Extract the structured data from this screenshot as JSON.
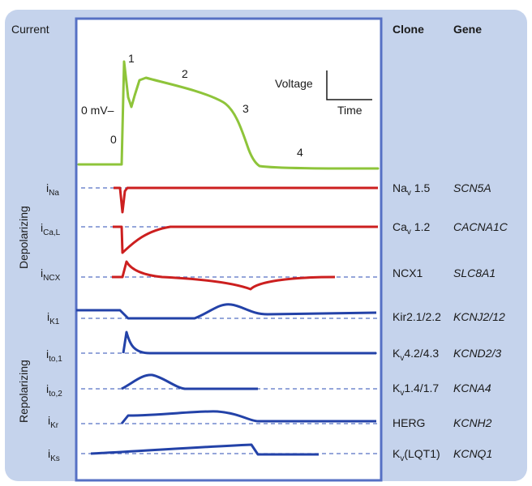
{
  "headers": {
    "current": "Current",
    "clone": "Clone",
    "gene": "Gene"
  },
  "colors": {
    "panel_bg": "#c5d3ec",
    "box_bg": "#ffffff",
    "box_border": "#5670c4",
    "ap_trace": "#8ec43a",
    "depolarizing_trace": "#cc1f1f",
    "repolarizing_trace": "#2342a8",
    "baseline_dash": "#5670c4"
  },
  "action_potential": {
    "phases": [
      "0",
      "1",
      "2",
      "3",
      "4"
    ],
    "zero_label": "0 mV–",
    "scale_voltage": "Voltage",
    "scale_time": "Time"
  },
  "groups": {
    "depolarizing": "Depolarizing",
    "repolarizing": "Repolarizing"
  },
  "currents": [
    {
      "id": "ina",
      "main": "i",
      "sub": "Na",
      "clone_main": "Na",
      "clone_sub": "v",
      "clone_rest": " 1.5",
      "gene": "SCN5A",
      "color": "red"
    },
    {
      "id": "ical",
      "main": "i",
      "sub": "Ca,L",
      "clone_main": "Ca",
      "clone_sub": "v",
      "clone_rest": " 1.2",
      "gene": "CACNA1C",
      "color": "red"
    },
    {
      "id": "incx",
      "main": "i",
      "sub": "NCX",
      "clone_main": "NCX1",
      "clone_sub": "",
      "clone_rest": "",
      "gene": "SLC8A1",
      "color": "red"
    },
    {
      "id": "ik1",
      "main": "i",
      "sub": "K1",
      "clone_main": "Kir2.1/2.2",
      "clone_sub": "",
      "clone_rest": "",
      "gene": "KCNJ2/12",
      "color": "blue"
    },
    {
      "id": "ito1",
      "main": "i",
      "sub": "to,1",
      "clone_main": "K",
      "clone_sub": "v",
      "clone_rest": "4.2/4.3",
      "gene": "KCND2/3",
      "color": "blue"
    },
    {
      "id": "ito2",
      "main": "i",
      "sub": "to,2",
      "clone_main": "K",
      "clone_sub": "v",
      "clone_rest": "1.4/1.7",
      "gene": "KCNA4",
      "color": "blue"
    },
    {
      "id": "ikr",
      "main": "i",
      "sub": "Kr",
      "clone_main": "HERG",
      "clone_sub": "",
      "clone_rest": "",
      "gene": "KCNH2",
      "color": "blue"
    },
    {
      "id": "iks",
      "main": "i",
      "sub": "Ks",
      "clone_main": "K",
      "clone_sub": "v",
      "clone_rest": "(LQT1)",
      "gene": "KCNQ1",
      "color": "blue"
    }
  ]
}
